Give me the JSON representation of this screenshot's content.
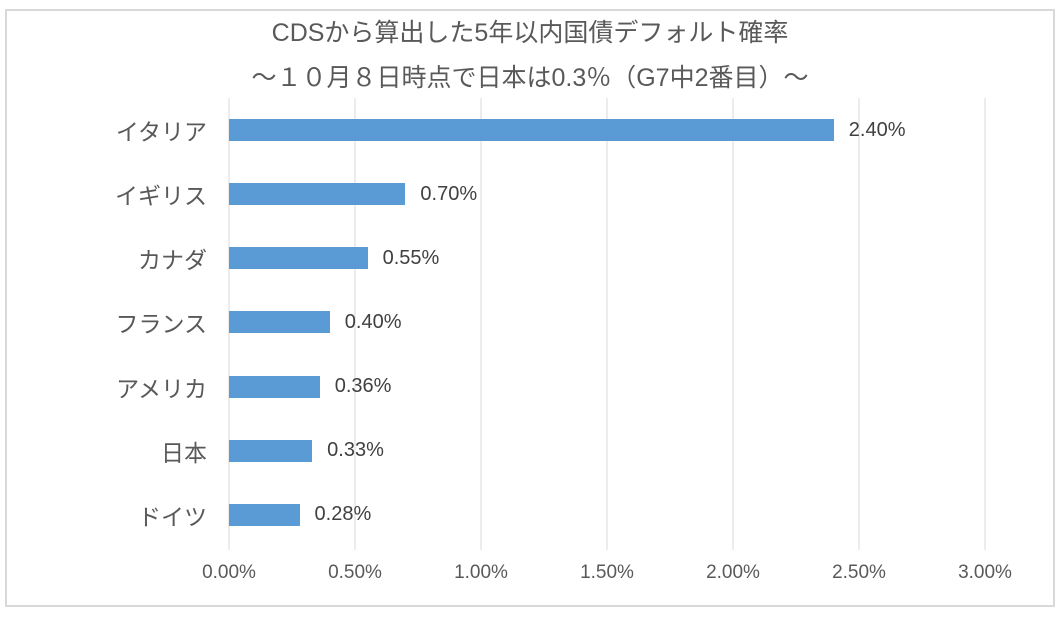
{
  "chart_data": {
    "type": "bar",
    "orientation": "horizontal",
    "title": "CDSから算出した5年以内国債デフォルト確率",
    "subtitle": "～１０月８日時点で日本は0.3％（G7中2番目）～",
    "categories": [
      "イタリア",
      "イギリス",
      "カナダ",
      "フランス",
      "アメリカ",
      "日本",
      "ドイツ"
    ],
    "values": [
      2.4,
      0.7,
      0.55,
      0.4,
      0.36,
      0.33,
      0.28
    ],
    "data_labels": [
      "2.40%",
      "0.70%",
      "0.55%",
      "0.40%",
      "0.36%",
      "0.33%",
      "0.28%"
    ],
    "x_ticks": [
      "0.00%",
      "0.50%",
      "1.00%",
      "1.50%",
      "2.00%",
      "2.50%",
      "3.00%"
    ],
    "xlim": [
      0,
      3
    ],
    "ylabel": "",
    "xlabel": "",
    "grid": "vertical-only",
    "legend": "none",
    "colors": {
      "bar": "#5b9bd5",
      "gridline": "#d9d9d9",
      "frame_border": "#d9d9d9",
      "title_text": "#595959",
      "axis_text": "#595959",
      "data_label_text": "#404040",
      "background": "#ffffff"
    }
  }
}
